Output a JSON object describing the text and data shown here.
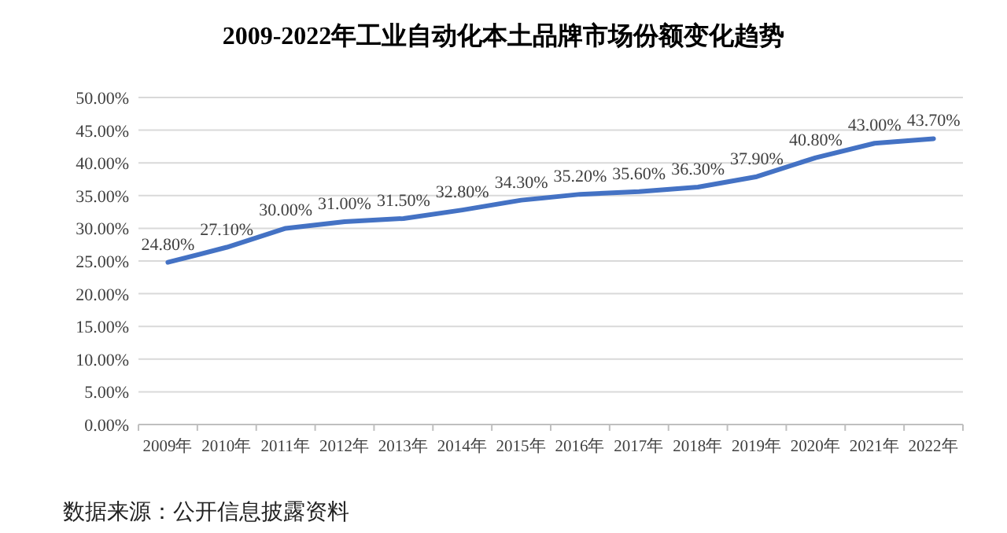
{
  "chart_data": {
    "type": "line",
    "title": "2009-2022年工业自动化本土品牌市场份额变化趋势",
    "categories": [
      "2009年",
      "2010年",
      "2011年",
      "2012年",
      "2013年",
      "2014年",
      "2015年",
      "2016年",
      "2017年",
      "2018年",
      "2019年",
      "2020年",
      "2021年",
      "2022年"
    ],
    "series": [
      {
        "color": "#4472c4",
        "values": [
          24.8,
          27.1,
          30.0,
          31.0,
          31.5,
          32.8,
          34.3,
          35.2,
          35.6,
          36.3,
          37.9,
          40.8,
          43.0,
          43.7
        ],
        "value_labels": [
          "24.80%",
          "27.10%",
          "30.00%",
          "31.00%",
          "31.50%",
          "32.80%",
          "34.30%",
          "35.20%",
          "35.60%",
          "36.30%",
          "37.90%",
          "40.80%",
          "43.00%",
          "43.70%"
        ]
      }
    ],
    "ylim": [
      0,
      50
    ],
    "yticks": [
      {
        "value": 0,
        "label": "0.00%"
      },
      {
        "value": 5,
        "label": "5.00%"
      },
      {
        "value": 10,
        "label": "10.00%"
      },
      {
        "value": 15,
        "label": "15.00%"
      },
      {
        "value": 20,
        "label": "20.00%"
      },
      {
        "value": 25,
        "label": "25.00%"
      },
      {
        "value": 30,
        "label": "30.00%"
      },
      {
        "value": 35,
        "label": "35.00%"
      },
      {
        "value": 40,
        "label": "40.00%"
      },
      {
        "value": 45,
        "label": "45.00%"
      },
      {
        "value": 50,
        "label": "50.00%"
      }
    ],
    "grid": "y",
    "marker": "none",
    "line_style": "solid",
    "annotations": [
      "数据来源：公开信息披露资料"
    ]
  }
}
